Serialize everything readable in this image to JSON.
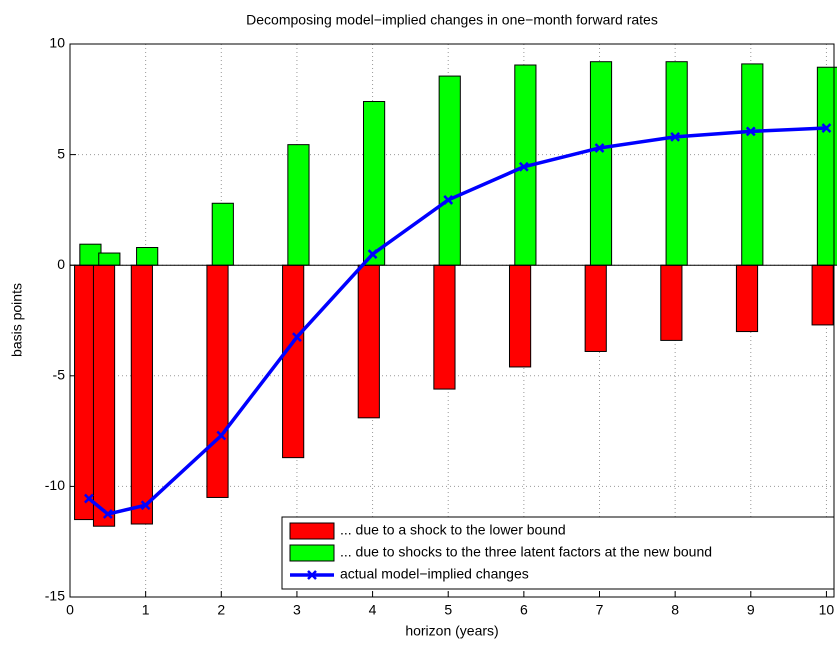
{
  "chart_data": {
    "type": "bar-line",
    "title": "Decomposing model−implied changes in one−month forward rates",
    "x_label": "horizon (years)",
    "y_label": "basis points",
    "x": [
      0.25,
      0.5,
      1,
      2,
      3,
      4,
      5,
      6,
      7,
      8,
      9,
      10
    ],
    "series": [
      {
        "name": "... due to a shock to the lower bound",
        "kind": "bar",
        "color": "#ff0000",
        "values": [
          -11.5,
          -11.8,
          -11.7,
          -10.5,
          -8.7,
          -6.9,
          -5.6,
          -4.6,
          -3.9,
          -3.4,
          -3.0,
          -2.7
        ]
      },
      {
        "name": "... due to shocks to the three latent factors at the new bound",
        "kind": "bar",
        "color": "#00ff00",
        "values": [
          0.95,
          0.55,
          0.8,
          2.8,
          5.45,
          7.4,
          8.55,
          9.05,
          9.2,
          9.2,
          9.1,
          8.95
        ]
      },
      {
        "name": "actual model−implied changes",
        "kind": "line",
        "color": "#0000ff",
        "values": [
          -10.55,
          -11.25,
          -10.85,
          -7.7,
          -3.25,
          0.5,
          2.95,
          4.45,
          5.3,
          5.8,
          6.05,
          6.2
        ]
      }
    ],
    "xlim": [
      0,
      10.1
    ],
    "xticks": [
      0,
      1,
      2,
      3,
      4,
      5,
      6,
      7,
      8,
      9,
      10
    ],
    "ylim": [
      -15,
      10
    ],
    "yticks": [
      -15,
      -10,
      -5,
      0,
      5,
      10
    ],
    "grid": true,
    "legend": "lower-right"
  }
}
